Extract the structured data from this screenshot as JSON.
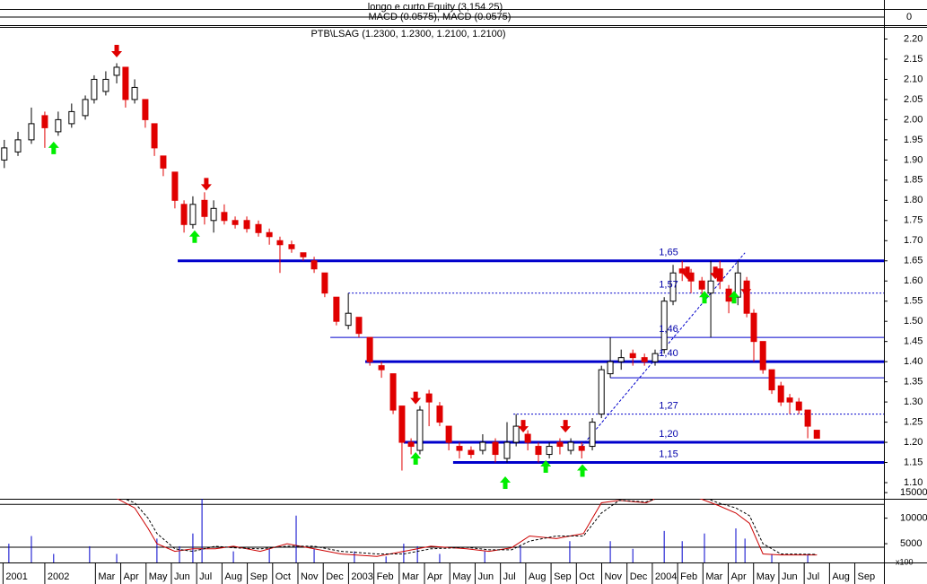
{
  "chart_data": [
    {
      "type": "indicator",
      "title": "longo e curto Equity (3,154.25)",
      "subtitle": "MACD (0.0575), MACD (0.0575)",
      "ylim": [
        -1,
        1
      ],
      "yticks": [
        0
      ]
    },
    {
      "type": "candlestick",
      "title": "PTB\\LSAG (1.2300, 1.2300, 1.2100, 1.2100)",
      "x": [
        -1.6,
        -1.06,
        -0.53,
        0,
        0.53,
        1.06,
        1.6,
        1.95,
        2.41,
        2.84,
        3.19,
        3.55,
        3.97,
        4.33,
        4.68,
        5.14,
        5.5,
        5.85,
        6.31,
        6.67,
        7.09,
        7.52,
        7.98,
        8.44,
        8.87,
        9.29,
        9.75,
        10.21,
        10.64,
        11.06,
        11.52,
        11.99,
        12.41,
        12.84,
        13.3,
        13.76,
        14.11,
        14.47,
        14.82,
        15.18,
        15.6,
        15.96,
        16.38,
        16.84,
        17.3,
        17.8,
        18.26,
        18.62,
        19.08,
        19.5,
        19.93,
        20.35,
        20.78,
        21.21,
        21.63,
        21.99,
        22.34,
        22.77,
        23.23,
        23.69,
        24.11,
        24.47,
        24.82,
        25.18,
        25.53,
        25.96,
        26.31,
        26.67,
        27.02,
        27.38,
        27.73,
        28.01,
        28.37,
        28.72,
        29.08,
        29.43,
        29.79,
        30.14,
        30.5
      ],
      "open": [
        1.9,
        1.92,
        1.95,
        2.01,
        1.97,
        1.99,
        2.01,
        2.05,
        2.07,
        2.11,
        2.13,
        2.05,
        2.05,
        1.99,
        1.91,
        1.87,
        1.79,
        1.74,
        1.8,
        1.75,
        1.77,
        1.75,
        1.75,
        1.74,
        1.72,
        1.7,
        1.69,
        1.67,
        1.65,
        1.62,
        1.56,
        1.49,
        1.51,
        1.46,
        1.39,
        1.37,
        1.29,
        1.2,
        1.18,
        1.32,
        1.29,
        1.24,
        1.19,
        1.18,
        1.18,
        1.2,
        1.16,
        1.2,
        1.22,
        1.19,
        1.17,
        1.2,
        1.18,
        1.19,
        1.19,
        1.27,
        1.37,
        1.4,
        1.42,
        1.41,
        1.4,
        1.43,
        1.55,
        1.63,
        1.62,
        1.6,
        1.57,
        1.63,
        1.58,
        1.56,
        1.6,
        1.52,
        1.45,
        1.38,
        1.34,
        1.31,
        1.3,
        1.28,
        1.23
      ],
      "high": [
        1.95,
        1.97,
        2.03,
        2.02,
        2.02,
        2.04,
        2.06,
        2.11,
        2.12,
        2.14,
        2.13,
        2.1,
        2.05,
        1.99,
        1.91,
        1.87,
        1.8,
        1.81,
        1.82,
        1.8,
        1.79,
        1.76,
        1.76,
        1.75,
        1.73,
        1.71,
        1.7,
        1.67,
        1.66,
        1.62,
        1.56,
        1.57,
        1.51,
        1.46,
        1.4,
        1.37,
        1.29,
        1.21,
        1.29,
        1.33,
        1.3,
        1.24,
        1.2,
        1.19,
        1.22,
        1.21,
        1.25,
        1.27,
        1.23,
        1.2,
        1.2,
        1.21,
        1.21,
        1.2,
        1.26,
        1.39,
        1.46,
        1.43,
        1.43,
        1.42,
        1.43,
        1.56,
        1.64,
        1.65,
        1.63,
        1.61,
        1.65,
        1.65,
        1.59,
        1.65,
        1.61,
        1.53,
        1.45,
        1.38,
        1.35,
        1.32,
        1.31,
        1.28,
        1.23
      ],
      "low": [
        1.88,
        1.91,
        1.94,
        1.93,
        1.96,
        1.98,
        2.0,
        2.04,
        2.06,
        2.09,
        2.03,
        2.04,
        1.98,
        1.91,
        1.86,
        1.78,
        1.72,
        1.73,
        1.74,
        1.72,
        1.74,
        1.73,
        1.72,
        1.71,
        1.69,
        1.62,
        1.67,
        1.65,
        1.62,
        1.56,
        1.49,
        1.48,
        1.46,
        1.39,
        1.36,
        1.27,
        1.13,
        1.17,
        1.17,
        1.24,
        1.24,
        1.18,
        1.16,
        1.16,
        1.17,
        1.15,
        1.15,
        1.19,
        1.18,
        1.15,
        1.16,
        1.17,
        1.17,
        1.16,
        1.18,
        1.26,
        1.36,
        1.38,
        1.39,
        1.39,
        1.39,
        1.42,
        1.54,
        1.6,
        1.57,
        1.56,
        1.46,
        1.58,
        1.52,
        1.54,
        1.51,
        1.4,
        1.37,
        1.32,
        1.29,
        1.27,
        1.27,
        1.21,
        1.21
      ],
      "close": [
        1.93,
        1.95,
        1.99,
        1.98,
        2.0,
        2.02,
        2.05,
        2.1,
        2.1,
        2.13,
        2.05,
        2.08,
        2.0,
        1.93,
        1.88,
        1.8,
        1.74,
        1.79,
        1.76,
        1.78,
        1.75,
        1.74,
        1.73,
        1.72,
        1.71,
        1.69,
        1.68,
        1.66,
        1.63,
        1.57,
        1.5,
        1.52,
        1.47,
        1.4,
        1.38,
        1.28,
        1.2,
        1.19,
        1.28,
        1.3,
        1.25,
        1.2,
        1.18,
        1.17,
        1.2,
        1.17,
        1.2,
        1.24,
        1.2,
        1.17,
        1.19,
        1.19,
        1.2,
        1.18,
        1.25,
        1.38,
        1.4,
        1.41,
        1.41,
        1.4,
        1.42,
        1.55,
        1.62,
        1.62,
        1.6,
        1.58,
        1.6,
        1.6,
        1.55,
        1.62,
        1.52,
        1.45,
        1.38,
        1.33,
        1.3,
        1.3,
        1.28,
        1.24,
        1.21
      ],
      "up_color": "#ffffff",
      "down_color": "#e00000",
      "xlim": [
        -1.77,
        33.15
      ],
      "ylim": [
        1.06,
        2.23
      ],
      "yticks": [
        {
          "value": 1.1,
          "label": "1.10"
        },
        1.15,
        {
          "value": 1.2,
          "label": "1.20"
        },
        1.25,
        {
          "value": 1.3,
          "label": "1.30"
        },
        1.35,
        {
          "value": 1.4,
          "label": "1.40"
        },
        1.45,
        {
          "value": 1.5,
          "label": "1.50"
        },
        1.55,
        {
          "value": 1.6,
          "label": "1.60"
        },
        1.65,
        {
          "value": 1.7,
          "label": "1.70"
        },
        1.75,
        {
          "value": 1.8,
          "label": "1.80"
        },
        1.85,
        {
          "value": 1.9,
          "label": "1.90"
        },
        1.95,
        {
          "value": 2.0,
          "label": "2.00"
        },
        2.05,
        {
          "value": 2.1,
          "label": "2.10"
        },
        2.15,
        {
          "value": 2.2,
          "label": "2.20"
        }
      ],
      "levels": [
        {
          "value": 1.65,
          "label": "1,65",
          "start": 5.25,
          "style": "thick"
        },
        {
          "value": 1.57,
          "label": "1,57",
          "start": 11.99,
          "style": "dashed"
        },
        {
          "value": 1.46,
          "label": "1,46",
          "start": 11.28,
          "style": "thin"
        },
        {
          "value": 1.4,
          "label": "1,40",
          "start": 12.66,
          "style": "thick"
        },
        {
          "value": 1.36,
          "start": 22.34,
          "style": "thin"
        },
        {
          "value": 1.27,
          "label": "1,27",
          "start": 18.51,
          "style": "dashed"
        },
        {
          "value": 1.2,
          "label": "1,20",
          "start": 14.18,
          "style": "thick"
        },
        {
          "value": 1.15,
          "label": "1,15",
          "start": 16.13,
          "style": "thick"
        }
      ],
      "level_color": "#0000cc",
      "trend_line": {
        "x": [
          21.21,
          27.66
        ],
        "y": [
          1.19,
          1.67
        ]
      },
      "signals": [
        {
          "x": 2.84,
          "y": 2.17,
          "kind": "sell"
        },
        {
          "x": 6.38,
          "y": 1.84,
          "kind": "sell"
        },
        {
          "x": 14.65,
          "y": 1.31,
          "kind": "sell"
        },
        {
          "x": 18.9,
          "y": 1.24,
          "kind": "sell"
        },
        {
          "x": 20.57,
          "y": 1.24,
          "kind": "sell"
        },
        {
          "x": 25.39,
          "y": 1.62,
          "kind": "sell"
        },
        {
          "x": 26.49,
          "y": 1.62,
          "kind": "sell"
        },
        {
          "x": 27.7,
          "y": 1.58,
          "kind": "sell"
        },
        {
          "x": 0.35,
          "y": 1.93,
          "kind": "buy"
        },
        {
          "x": 5.92,
          "y": 1.71,
          "kind": "buy"
        },
        {
          "x": 14.65,
          "y": 1.16,
          "kind": "buy"
        },
        {
          "x": 18.19,
          "y": 1.1,
          "kind": "buy"
        },
        {
          "x": 19.79,
          "y": 1.14,
          "kind": "buy"
        },
        {
          "x": 21.24,
          "y": 1.13,
          "kind": "buy"
        },
        {
          "x": 26.06,
          "y": 1.56,
          "kind": "buy"
        },
        {
          "x": 27.23,
          "y": 1.56,
          "kind": "buy"
        }
      ],
      "sell_color": "#e00000",
      "buy_color": "#00ee00"
    },
    {
      "type": "volume",
      "unit_label": "x100",
      "color": "#0000cc",
      "x": [
        -1.42,
        -0.53,
        0.35,
        1.77,
        2.84,
        4.43,
        5.32,
        5.85,
        6.21,
        7.45,
        8.87,
        9.93,
        10.64,
        12.23,
        13.48,
        14.18,
        14.72,
        15.6,
        17.38,
        18.79,
        20.74,
        22.34,
        23.23,
        24.47,
        25.18,
        26.06,
        27.3,
        27.66,
        28.72,
        30.14
      ],
      "values": [
        5000,
        6500,
        3000,
        4500,
        3000,
        6000,
        4500,
        7000,
        15500,
        3500,
        4000,
        10500,
        4000,
        3500,
        2500,
        5000,
        4500,
        3000,
        3500,
        4500,
        5500,
        5500,
        4000,
        7500,
        5500,
        7000,
        8000,
        6000,
        3000,
        3000
      ],
      "series": [
        {
          "color": "#cc0000",
          "dashed": false,
          "x": [
            2.41,
            3.55,
            4.08,
            4.43,
            5.14,
            5.85,
            6.74,
            7.45,
            8.51,
            9.57,
            10.64,
            11.7,
            13.12,
            14.18,
            15.25,
            16.67,
            17.55,
            18.44,
            19.15,
            20.21,
            21.28,
            21.99,
            22.7,
            23.76,
            24.65,
            25.53,
            26.6,
            27.3,
            27.84,
            28.37,
            29.08,
            30.5
          ],
          "values": [
            15000,
            12000,
            8000,
            5000,
            3500,
            4000,
            4000,
            4500,
            3500,
            5000,
            4000,
            3000,
            2500,
            3500,
            4500,
            4000,
            3500,
            4200,
            6500,
            6000,
            7000,
            13000,
            13500,
            13000,
            15000,
            14500,
            12500,
            11000,
            9000,
            3000,
            2800,
            2800
          ]
        },
        {
          "color": "#000000",
          "dashed": true,
          "x": [
            2.41,
            3.55,
            4.08,
            4.43,
            5.14,
            5.85,
            6.74,
            7.45,
            8.51,
            9.57,
            10.64,
            11.7,
            13.12,
            14.18,
            15.25,
            16.67,
            17.55,
            18.44,
            19.15,
            20.21,
            21.28,
            21.99,
            22.7,
            23.76,
            24.65,
            25.53,
            26.6,
            27.3,
            27.84,
            28.37,
            29.08,
            30.5
          ],
          "values": [
            15200,
            13000,
            10000,
            7000,
            4000,
            3500,
            4500,
            4200,
            4000,
            4500,
            4500,
            3500,
            3000,
            3000,
            4000,
            4300,
            3800,
            3800,
            5500,
            6500,
            6500,
            11000,
            13500,
            13200,
            14500,
            15000,
            13000,
            12000,
            10500,
            5000,
            3000,
            2900
          ]
        }
      ],
      "reference_lines": [
        12700,
        4300
      ],
      "xlim": [
        -1.77,
        33.15
      ],
      "ylim": [
        1500,
        15200
      ],
      "yticks": [
        5000,
        10000,
        15000
      ],
      "xticks": [
        {
          "value": -1.65,
          "label": "2001"
        },
        {
          "value": 0,
          "label": "2002"
        },
        {
          "value": 2,
          "label": "Mar"
        },
        {
          "value": 3,
          "label": "Apr"
        },
        {
          "value": 4,
          "label": "May"
        },
        {
          "value": 5,
          "label": "Jun"
        },
        {
          "value": 6,
          "label": "Jul"
        },
        {
          "value": 7,
          "label": "Aug"
        },
        {
          "value": 8,
          "label": "Sep"
        },
        {
          "value": 9,
          "label": "Oct"
        },
        {
          "value": 10,
          "label": "Nov"
        },
        {
          "value": 11,
          "label": "Dec"
        },
        {
          "value": 12,
          "label": "2003"
        },
        {
          "value": 13,
          "label": "Feb"
        },
        {
          "value": 14,
          "label": "Mar"
        },
        {
          "value": 15,
          "label": "Apr"
        },
        {
          "value": 16,
          "label": "May"
        },
        {
          "value": 17,
          "label": "Jun"
        },
        {
          "value": 18,
          "label": "Jul"
        },
        {
          "value": 19,
          "label": "Aug"
        },
        {
          "value": 20,
          "label": "Sep"
        },
        {
          "value": 21,
          "label": "Oct"
        },
        {
          "value": 22,
          "label": "Nov"
        },
        {
          "value": 23,
          "label": "Dec"
        },
        {
          "value": 24,
          "label": "2004"
        },
        {
          "value": 25,
          "label": "Feb"
        },
        {
          "value": 26,
          "label": "Mar"
        },
        {
          "value": 27,
          "label": "Apr"
        },
        {
          "value": 28,
          "label": "May"
        },
        {
          "value": 29,
          "label": "Jun"
        },
        {
          "value": 30,
          "label": "Jul"
        },
        {
          "value": 31,
          "label": "Aug"
        },
        {
          "value": 32,
          "label": "Sep"
        }
      ]
    }
  ]
}
